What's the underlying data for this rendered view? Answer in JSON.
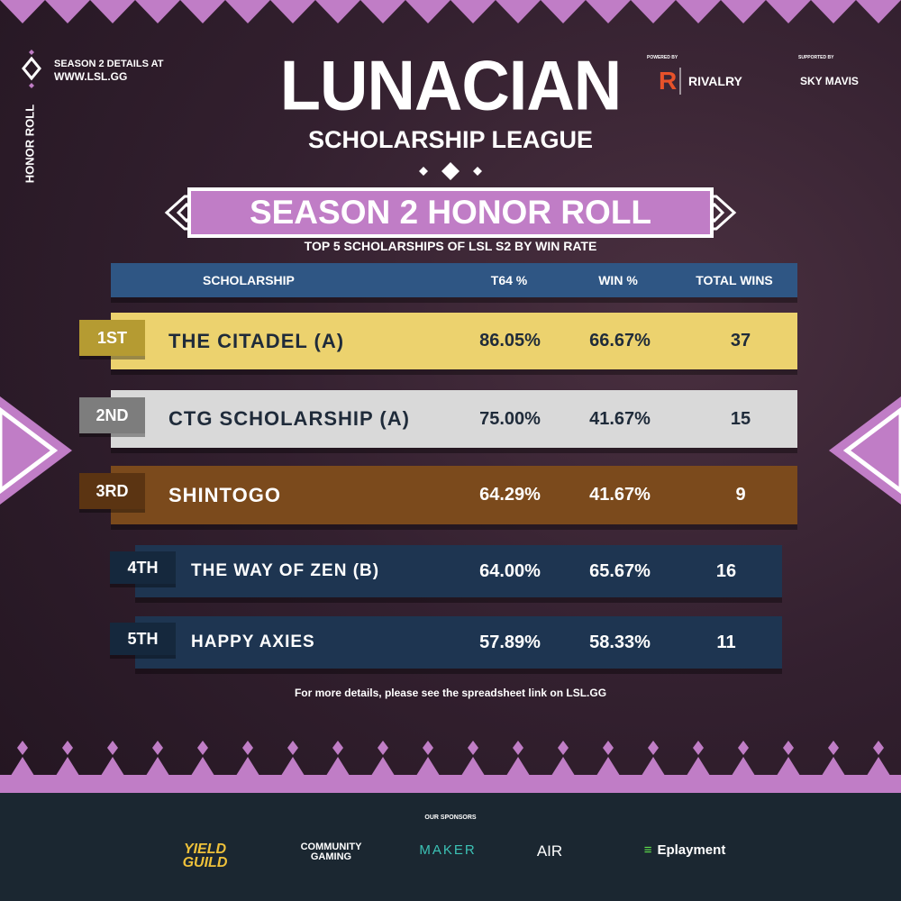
{
  "side": {
    "details_label": "SEASON 2 DETAILS AT",
    "url": "WWW.LSL.GG",
    "vertical_label": "HONOR ROLL"
  },
  "logo": {
    "title": "LUNACIAN",
    "subtitle": "SCHOLARSHIP LEAGUE"
  },
  "partners": [
    {
      "caption": "POWERED BY",
      "name": "RIVALRY"
    },
    {
      "caption": "SUPPORTED BY",
      "name": "SKY MAVIS"
    }
  ],
  "banner": {
    "title": "SEASON 2  HONOR ROLL",
    "subtitle": "TOP 5 SCHOLARSHIPS OF LSL S2 BY WIN RATE"
  },
  "table": {
    "header": [
      "SCHOLARSHIP",
      "T64 %",
      "WIN %",
      "TOTAL WINS"
    ],
    "rows": [
      [
        "1ST",
        "THE CITADEL (A)",
        "86.05%",
        "66.67%",
        "37"
      ],
      [
        "2ND",
        "CTG SCHOLARSHIP (A)",
        "75.00%",
        "41.67%",
        "15"
      ],
      [
        "3RD",
        "SHINTOGO",
        "64.29%",
        "41.67%",
        "9"
      ],
      [
        "4TH",
        "THE WAY OF ZEN (B)",
        "64.00%",
        "65.67%",
        "16"
      ],
      [
        "5TH",
        "HAPPY AXIES",
        "57.89%",
        "58.33%",
        "11"
      ]
    ]
  },
  "note": "For more details, please see the spreadsheet link on LSL.GG",
  "sponsors": {
    "title": "OUR SPONSORS",
    "names": [
      "YIELD GUILD",
      "COMMUNITY GAMING",
      "MAKER",
      "AIR",
      "Eplayment"
    ]
  }
}
